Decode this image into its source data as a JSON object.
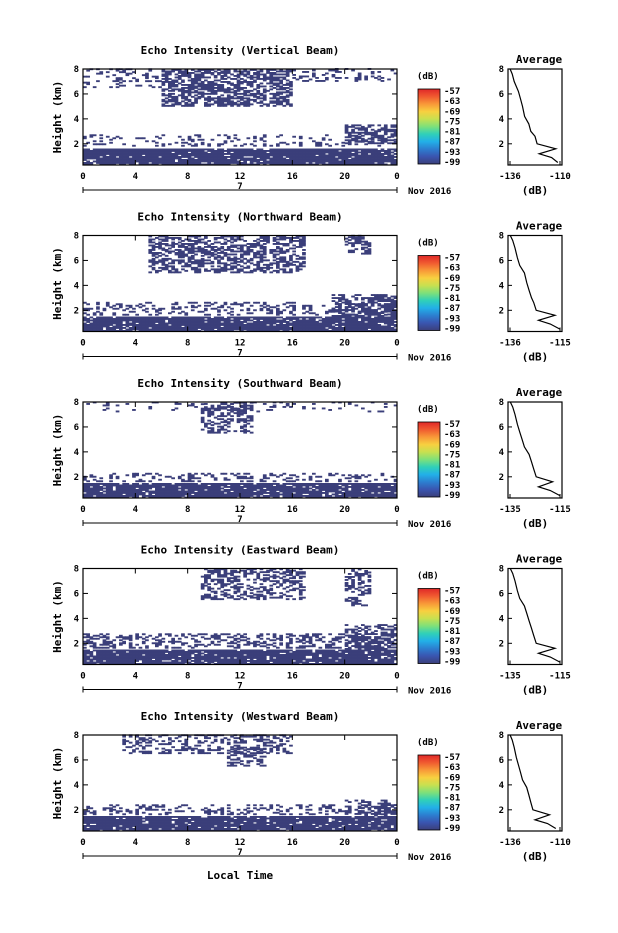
{
  "figure": {
    "xlabel_common": "Local Time"
  },
  "colors": {
    "echo": "#3b3f7a",
    "colorbar": [
      "#3b3f7a",
      "#3a55b0",
      "#2c7fd0",
      "#22b0e8",
      "#30d0b8",
      "#7ee07a",
      "#c8e050",
      "#f8d040",
      "#f89838",
      "#f05a30",
      "#e02828"
    ]
  },
  "chart_data": [
    {
      "type": "heatmap",
      "title": "Echo Intensity (Vertical Beam)",
      "ylabel": "Height (km)",
      "ylim": [
        0.3,
        8
      ],
      "yticks": [
        "2",
        "4",
        "6",
        "8"
      ],
      "xlim": [
        0,
        24
      ],
      "xticks": [
        "0",
        "4",
        "8",
        "12",
        "16",
        "20",
        "0"
      ],
      "date_marker": "7",
      "date_label": "Nov 2016",
      "colorbar": {
        "unit": "(dB)",
        "ticks": [
          "-57",
          "-63",
          "-69",
          "-75",
          "-81",
          "-87",
          "-93",
          "-99"
        ]
      },
      "layers": [
        {
          "t0": 0,
          "t1": 24,
          "h0": 0.3,
          "h1": 1.6,
          "density": 0.92
        },
        {
          "t0": 0,
          "t1": 24,
          "h0": 1.8,
          "h1": 2.7,
          "density": 0.18
        },
        {
          "t0": 20,
          "t1": 24,
          "h0": 2.0,
          "h1": 3.5,
          "density": 0.55
        },
        {
          "t0": 6,
          "t1": 16,
          "h0": 5.0,
          "h1": 8.0,
          "density": 0.6
        },
        {
          "t0": 0,
          "t1": 6,
          "h0": 6.5,
          "h1": 8.0,
          "density": 0.25
        },
        {
          "t0": 16,
          "t1": 24,
          "h0": 7.0,
          "h1": 8.0,
          "density": 0.25
        }
      ],
      "average": {
        "title": "Average",
        "xlabel": "(dB)",
        "xlim": [
          -136,
          -110
        ],
        "xticks": [
          "-136",
          "-110"
        ],
        "yticks": [
          "2",
          "4",
          "6",
          "8"
        ],
        "profile": [
          [
            -112,
            0.5
          ],
          [
            -115,
            0.9
          ],
          [
            -121,
            1.2
          ],
          [
            -113,
            1.6
          ],
          [
            -122,
            2.0
          ],
          [
            -123,
            2.6
          ],
          [
            -125,
            3.0
          ],
          [
            -126,
            3.6
          ],
          [
            -128,
            4.2
          ],
          [
            -129,
            5.0
          ],
          [
            -130,
            5.6
          ],
          [
            -131,
            6.2
          ],
          [
            -133,
            7.0
          ],
          [
            -134,
            7.6
          ],
          [
            -135,
            8.0
          ]
        ]
      }
    },
    {
      "type": "heatmap",
      "title": "Echo Intensity (Northward Beam)",
      "ylabel": "Height (km)",
      "ylim": [
        0.3,
        8
      ],
      "yticks": [
        "2",
        "4",
        "6",
        "8"
      ],
      "xlim": [
        0,
        24
      ],
      "xticks": [
        "0",
        "4",
        "8",
        "12",
        "16",
        "20",
        "0"
      ],
      "date_marker": "7",
      "date_label": "Nov 2016",
      "colorbar": {
        "unit": "(dB)",
        "ticks": [
          "-57",
          "-63",
          "-69",
          "-75",
          "-81",
          "-87",
          "-93",
          "-99"
        ]
      },
      "layers": [
        {
          "t0": 0,
          "t1": 24,
          "h0": 0.3,
          "h1": 1.5,
          "density": 0.9
        },
        {
          "t0": 0,
          "t1": 24,
          "h0": 1.6,
          "h1": 2.6,
          "density": 0.3
        },
        {
          "t0": 19,
          "t1": 24,
          "h0": 1.5,
          "h1": 3.2,
          "density": 0.55
        },
        {
          "t0": 5,
          "t1": 17,
          "h0": 5.0,
          "h1": 8.0,
          "density": 0.5
        },
        {
          "t0": 20,
          "t1": 22,
          "h0": 6.5,
          "h1": 8.0,
          "density": 0.35
        }
      ],
      "average": {
        "title": "Average",
        "xlabel": "(dB)",
        "xlim": [
          -136,
          -113
        ],
        "xticks": [
          "-136",
          "-115"
        ],
        "yticks": [
          "2",
          "4",
          "6",
          "8"
        ],
        "profile": [
          [
            -114,
            0.5
          ],
          [
            -118,
            0.9
          ],
          [
            -123,
            1.2
          ],
          [
            -116,
            1.6
          ],
          [
            -124,
            2.0
          ],
          [
            -125,
            2.6
          ],
          [
            -126,
            3.0
          ],
          [
            -127,
            3.6
          ],
          [
            -128,
            4.2
          ],
          [
            -129,
            5.0
          ],
          [
            -131,
            5.6
          ],
          [
            -132,
            6.2
          ],
          [
            -133,
            7.0
          ],
          [
            -134,
            7.6
          ],
          [
            -135,
            8.0
          ]
        ]
      }
    },
    {
      "type": "heatmap",
      "title": "Echo Intensity (Southward Beam)",
      "ylabel": "Height (km)",
      "ylim": [
        0.3,
        8
      ],
      "yticks": [
        "2",
        "4",
        "6",
        "8"
      ],
      "xlim": [
        0,
        24
      ],
      "xticks": [
        "0",
        "4",
        "8",
        "12",
        "16",
        "20",
        "0"
      ],
      "date_marker": "7",
      "date_label": "Nov 2016",
      "colorbar": {
        "unit": "(dB)",
        "ticks": [
          "-57",
          "-63",
          "-69",
          "-75",
          "-81",
          "-87",
          "-93",
          "-99"
        ]
      },
      "layers": [
        {
          "t0": 0,
          "t1": 24,
          "h0": 0.3,
          "h1": 1.5,
          "density": 0.9
        },
        {
          "t0": 0,
          "t1": 24,
          "h0": 1.6,
          "h1": 2.3,
          "density": 0.25
        },
        {
          "t0": 9,
          "t1": 13,
          "h0": 5.5,
          "h1": 8.0,
          "density": 0.45
        },
        {
          "t0": 0,
          "t1": 24,
          "h0": 7.2,
          "h1": 8.0,
          "density": 0.12
        }
      ],
      "average": {
        "title": "Average",
        "xlabel": "(dB)",
        "xlim": [
          -136,
          -113
        ],
        "xticks": [
          "-135",
          "-115"
        ],
        "yticks": [
          "2",
          "4",
          "6",
          "8"
        ],
        "profile": [
          [
            -114,
            0.5
          ],
          [
            -118,
            0.9
          ],
          [
            -123,
            1.2
          ],
          [
            -117,
            1.6
          ],
          [
            -124,
            2.0
          ],
          [
            -125,
            2.6
          ],
          [
            -126,
            3.2
          ],
          [
            -127,
            3.8
          ],
          [
            -129,
            4.4
          ],
          [
            -130,
            5.0
          ],
          [
            -131,
            5.6
          ],
          [
            -132,
            6.2
          ],
          [
            -133,
            7.0
          ],
          [
            -134,
            7.6
          ],
          [
            -135,
            8.0
          ]
        ]
      }
    },
    {
      "type": "heatmap",
      "title": "Echo Intensity (Eastward Beam)",
      "ylabel": "Height (km)",
      "ylim": [
        0.3,
        8
      ],
      "yticks": [
        "2",
        "4",
        "6",
        "8"
      ],
      "xlim": [
        0,
        24
      ],
      "xticks": [
        "0",
        "4",
        "8",
        "12",
        "16",
        "20",
        "0"
      ],
      "date_marker": "7",
      "date_label": "Nov 2016",
      "colorbar": {
        "unit": "(dB)",
        "ticks": [
          "-57",
          "-63",
          "-69",
          "-75",
          "-81",
          "-87",
          "-93",
          "-99"
        ]
      },
      "layers": [
        {
          "t0": 0,
          "t1": 24,
          "h0": 0.3,
          "h1": 1.5,
          "density": 0.9
        },
        {
          "t0": 0,
          "t1": 24,
          "h0": 1.6,
          "h1": 2.8,
          "density": 0.35
        },
        {
          "t0": 20,
          "t1": 24,
          "h0": 1.5,
          "h1": 3.5,
          "density": 0.5
        },
        {
          "t0": 9,
          "t1": 17,
          "h0": 5.5,
          "h1": 8.0,
          "density": 0.45
        },
        {
          "t0": 20,
          "t1": 22,
          "h0": 5.0,
          "h1": 8.0,
          "density": 0.35
        }
      ],
      "average": {
        "title": "Average",
        "xlabel": "(dB)",
        "xlim": [
          -136,
          -113
        ],
        "xticks": [
          "-135",
          "-115"
        ],
        "yticks": [
          "2",
          "4",
          "6",
          "8"
        ],
        "profile": [
          [
            -114,
            0.5
          ],
          [
            -118,
            0.9
          ],
          [
            -123,
            1.2
          ],
          [
            -116,
            1.6
          ],
          [
            -124,
            2.0
          ],
          [
            -125,
            2.6
          ],
          [
            -126,
            3.2
          ],
          [
            -127,
            3.8
          ],
          [
            -128,
            4.4
          ],
          [
            -129,
            5.0
          ],
          [
            -131,
            5.6
          ],
          [
            -132,
            6.2
          ],
          [
            -133,
            7.0
          ],
          [
            -134,
            7.6
          ],
          [
            -135,
            8.0
          ]
        ]
      }
    },
    {
      "type": "heatmap",
      "title": "Echo Intensity (Westward Beam)",
      "ylabel": "Height (km)",
      "ylim": [
        0.3,
        8
      ],
      "yticks": [
        "2",
        "4",
        "6",
        "8"
      ],
      "xlim": [
        0,
        24
      ],
      "xticks": [
        "0",
        "4",
        "8",
        "12",
        "16",
        "20",
        "0"
      ],
      "date_marker": "7",
      "date_label": "Nov 2016",
      "colorbar": {
        "unit": "(dB)",
        "ticks": [
          "-57",
          "-63",
          "-69",
          "-75",
          "-81",
          "-87",
          "-93",
          "-99"
        ]
      },
      "layers": [
        {
          "t0": 0,
          "t1": 24,
          "h0": 0.3,
          "h1": 1.5,
          "density": 0.9
        },
        {
          "t0": 0,
          "t1": 24,
          "h0": 1.6,
          "h1": 2.4,
          "density": 0.3
        },
        {
          "t0": 20,
          "t1": 24,
          "h0": 1.5,
          "h1": 2.8,
          "density": 0.4
        },
        {
          "t0": 3,
          "t1": 16,
          "h0": 6.5,
          "h1": 8.0,
          "density": 0.35
        },
        {
          "t0": 11,
          "t1": 14,
          "h0": 5.5,
          "h1": 7.0,
          "density": 0.4
        }
      ],
      "average": {
        "title": "Average",
        "xlabel": "(dB)",
        "xlim": [
          -136,
          -110
        ],
        "xticks": [
          "-136",
          "-110"
        ],
        "yticks": [
          "2",
          "4",
          "6",
          "8"
        ],
        "profile": [
          [
            -113,
            0.5
          ],
          [
            -117,
            0.9
          ],
          [
            -123,
            1.2
          ],
          [
            -116,
            1.6
          ],
          [
            -124,
            2.0
          ],
          [
            -125,
            2.6
          ],
          [
            -126,
            3.2
          ],
          [
            -127,
            3.8
          ],
          [
            -129,
            4.4
          ],
          [
            -130,
            5.0
          ],
          [
            -131,
            5.6
          ],
          [
            -132,
            6.2
          ],
          [
            -133,
            7.0
          ],
          [
            -134,
            7.6
          ],
          [
            -135,
            8.0
          ]
        ]
      }
    }
  ]
}
